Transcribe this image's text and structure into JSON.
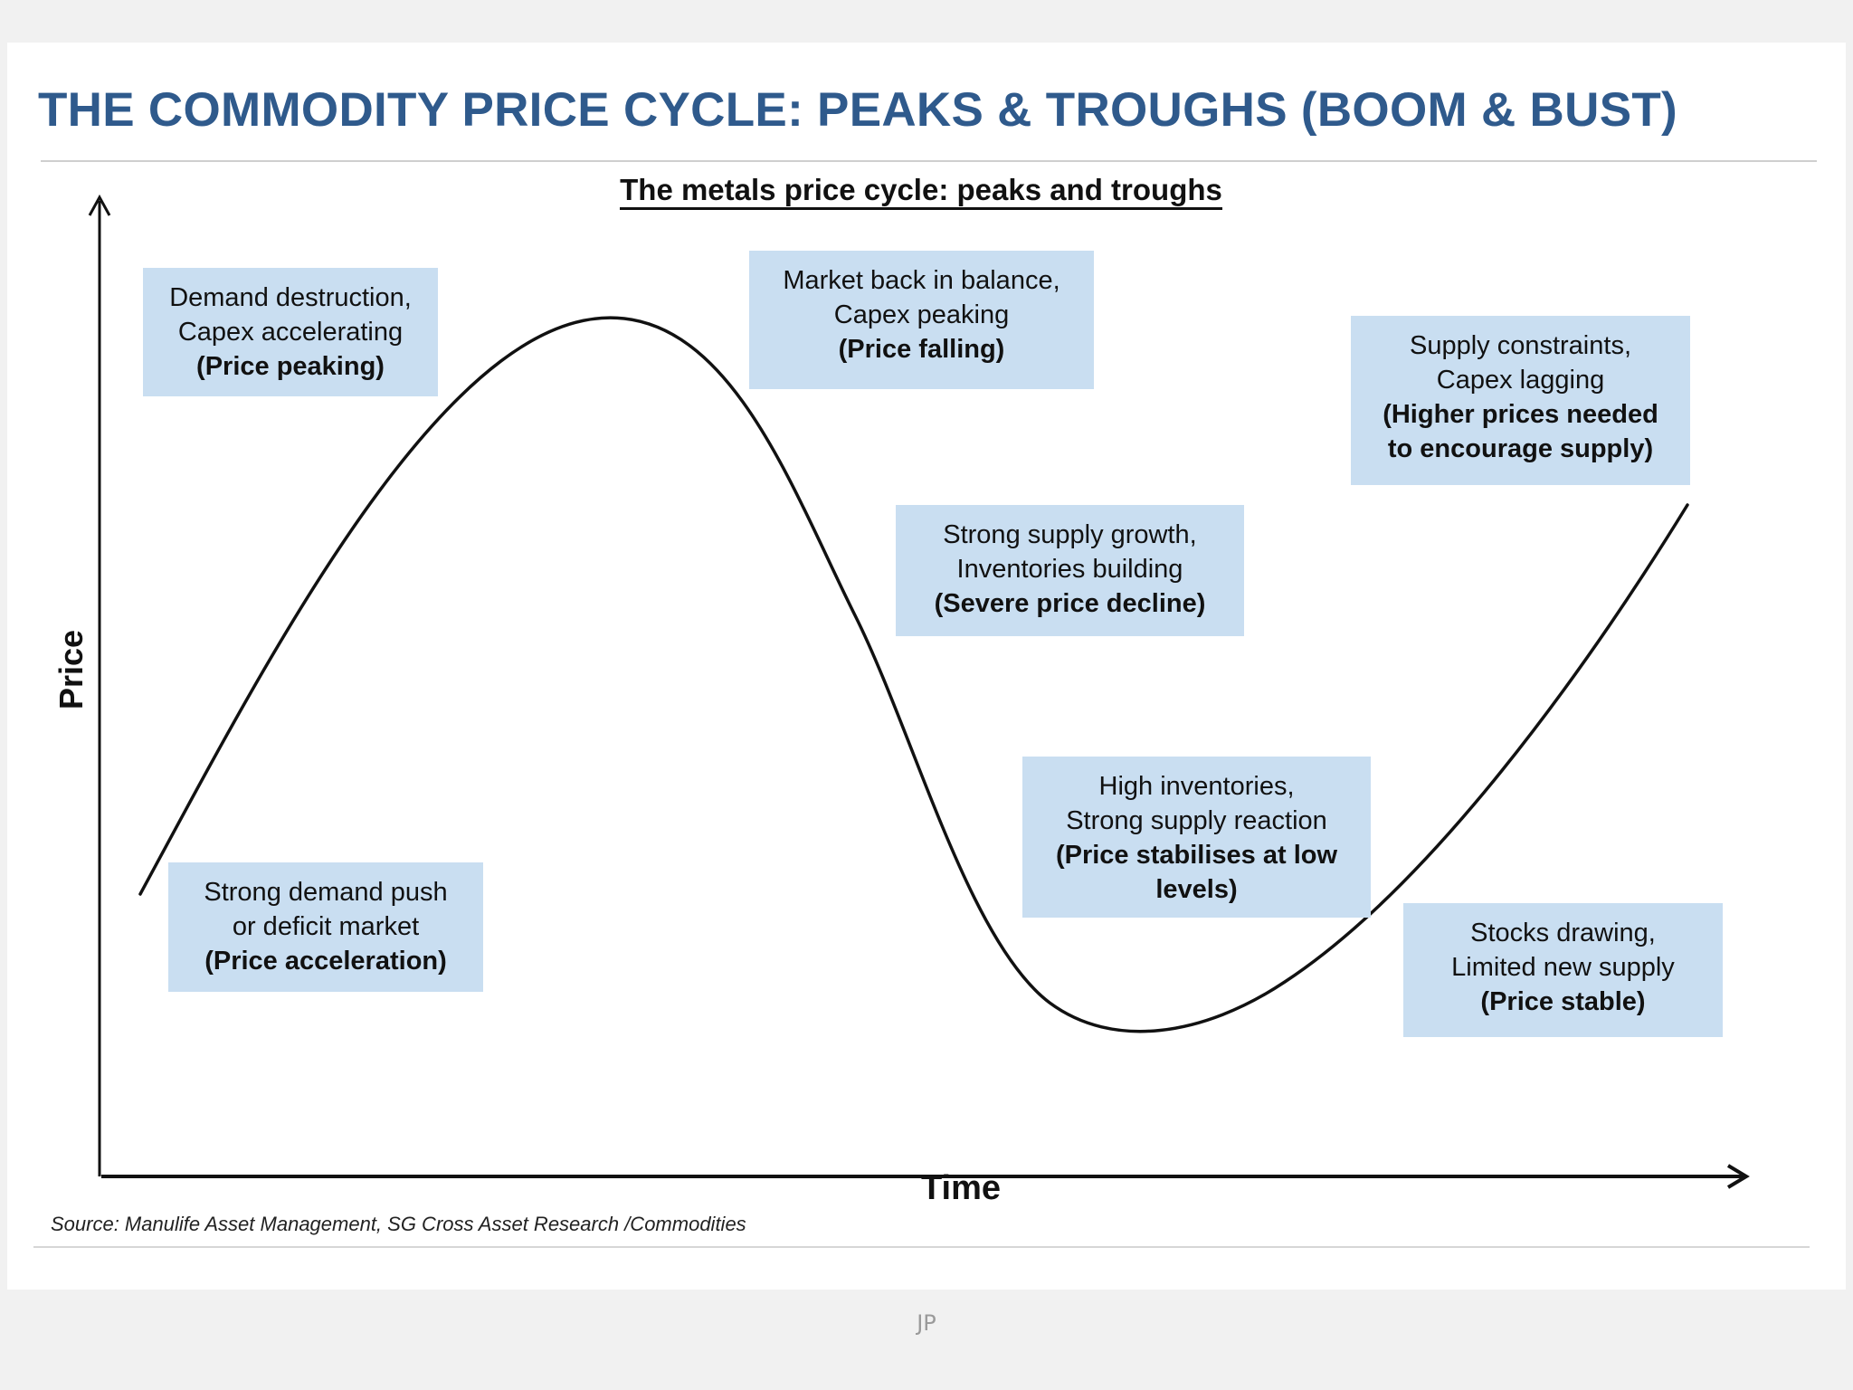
{
  "title": "THE COMMODITY PRICE CYCLE: PEAKS & TROUGHS (BOOM & BUST)",
  "subtitle": "The metals price cycle: peaks and troughs",
  "axes": {
    "y_label": "Price",
    "x_label": "Time"
  },
  "notes": {
    "demand_destruction": {
      "line1": "Demand destruction,",
      "line2": "Capex accelerating",
      "line3": "(Price peaking)"
    },
    "market_balance": {
      "line1": "Market back in balance,",
      "line2": "Capex peaking",
      "line3": "(Price falling)"
    },
    "supply_constraints": {
      "line1": "Supply constraints,",
      "line2": "Capex lagging",
      "line3": "(Higher prices needed",
      "line4": "to encourage supply)"
    },
    "strong_supply": {
      "line1": "Strong supply growth,",
      "line2": "Inventories building",
      "line3": "(Severe price decline)"
    },
    "high_inventories": {
      "line1": "High inventories,",
      "line2": "Strong supply reaction",
      "line3": "(Price stabilises at low",
      "line4": "levels)"
    },
    "strong_demand": {
      "line1": "Strong demand push",
      "line2": "or deficit market",
      "line3": "(Price acceleration)"
    },
    "stocks_drawing": {
      "line1": "Stocks drawing,",
      "line2": "Limited new supply",
      "line3": "(Price stable)"
    }
  },
  "source": "Source: Manulife Asset Management, SG Cross Asset Research /Commodities",
  "footer": "JP",
  "colors": {
    "title": "#2f5a8c",
    "note_background": "#c9def1",
    "curve": "#111111"
  }
}
